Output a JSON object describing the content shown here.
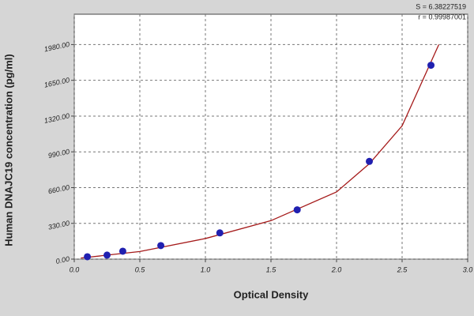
{
  "chart_data": {
    "type": "scatter",
    "x_label": "Optical Density",
    "y_label": "Human DNAJC19 concentration (pg/ml)",
    "annotations": [
      "S = 6.38227519",
      "r = 0.99987001"
    ],
    "xlim": [
      0,
      3
    ],
    "ylim": [
      0,
      2260
    ],
    "xticks": [
      {
        "value": 0,
        "label": "0.0"
      },
      0.5,
      {
        "value": 1,
        "label": "1.0"
      },
      1.5,
      {
        "value": 2,
        "label": "2.0"
      },
      2.5,
      {
        "value": 3,
        "label": "3.0"
      }
    ],
    "yticks": [
      {
        "value": 0,
        "label": "0.00"
      },
      {
        "value": 330,
        "label": "330.00"
      },
      {
        "value": 660,
        "label": "660.00"
      },
      {
        "value": 990,
        "label": "990.00"
      },
      {
        "value": 1320,
        "label": "1320.00"
      },
      {
        "value": 1650,
        "label": "1650.00"
      },
      {
        "value": 1980,
        "label": "1980.00"
      }
    ],
    "grid": true,
    "series": [
      {
        "mode": "line",
        "color": "#a51a1a",
        "x": [
          0.05,
          0.5,
          1.0,
          1.5,
          2.0,
          2.25,
          2.5,
          2.78
        ],
        "values": [
          10,
          70,
          190,
          355,
          620,
          880,
          1230,
          1980
        ]
      },
      {
        "mode": "markers",
        "color": "#2020b0",
        "x": [
          0.1,
          0.25,
          0.37,
          0.66,
          1.11,
          1.7,
          2.25,
          2.72
        ],
        "values": [
          22,
          37,
          73,
          125,
          242,
          455,
          902,
          1789
        ]
      }
    ]
  }
}
